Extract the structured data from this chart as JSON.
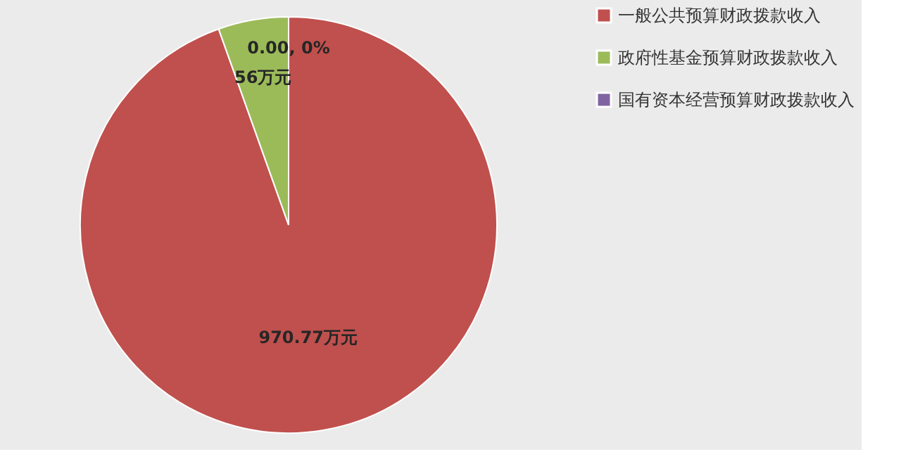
{
  "chart_data": {
    "type": "pie",
    "categories": [
      "一般公共预算财政拨款收入",
      "政府性基金预算财政拨款收入",
      "国有资本经营预算财政拨款收入"
    ],
    "values": [
      970.77,
      56,
      0
    ],
    "colors": [
      "#c0504d",
      "#9bbb59",
      "#8064a2"
    ],
    "value_labels": [
      "970.77万元",
      "56万元",
      "0.00, 0%"
    ],
    "legend": "right"
  }
}
